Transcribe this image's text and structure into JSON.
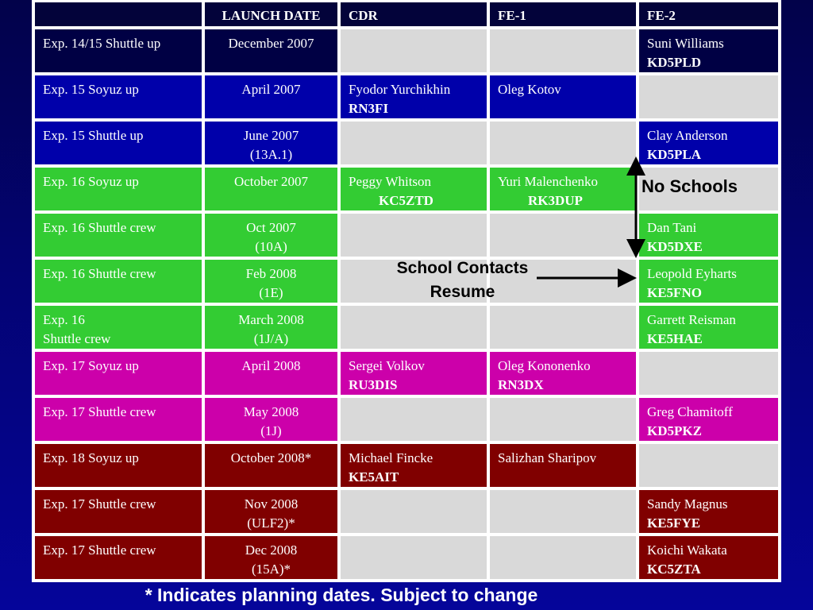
{
  "columns": [
    "",
    "LAUNCH DATE",
    "CDR",
    "FE-1",
    "FE-2"
  ],
  "rows": [
    {
      "color": "navy",
      "mission": "Exp. 14/15 Shuttle up",
      "date": [
        "December 2007"
      ],
      "cdr": null,
      "fe1": null,
      "fe2": {
        "name": "Suni Williams",
        "call": "KD5PLD"
      }
    },
    {
      "color": "blue",
      "mission": "Exp. 15 Soyuz up",
      "date": [
        "April 2007"
      ],
      "cdr": {
        "name": "Fyodor Yurchikhin",
        "call": "RN3FI"
      },
      "fe1": {
        "name": "Oleg Kotov",
        "call": ""
      },
      "fe2": null
    },
    {
      "color": "blue",
      "mission": "Exp. 15 Shuttle up",
      "date": [
        "June 2007",
        "(13A.1)"
      ],
      "cdr": null,
      "fe1": null,
      "fe2": {
        "name": "Clay Anderson",
        "call": "KD5PLA"
      }
    },
    {
      "color": "green",
      "mission": "Exp. 16 Soyuz up",
      "date": [
        "October 2007"
      ],
      "cdr": {
        "name": "Peggy Whitson",
        "call": "KC5ZTD"
      },
      "fe1": {
        "name": "Yuri Malenchenko",
        "call": "RK3DUP"
      },
      "fe2": null
    },
    {
      "color": "green",
      "mission": "Exp. 16 Shuttle crew",
      "date": [
        "Oct 2007",
        "(10A)"
      ],
      "cdr": null,
      "fe1": null,
      "fe2": {
        "name": "Dan Tani",
        "call": "KD5DXE"
      }
    },
    {
      "color": "green",
      "mission": "Exp. 16 Shuttle crew",
      "date": [
        "Feb 2008",
        "(1E)"
      ],
      "cdr": null,
      "fe1": null,
      "fe2": {
        "name": "Leopold Eyharts",
        "call": "KE5FNO"
      }
    },
    {
      "color": "green",
      "mission": "Exp. 16\nShuttle crew",
      "date": [
        "March 2008",
        "(1J/A)"
      ],
      "cdr": null,
      "fe1": null,
      "fe2": {
        "name": "Garrett Reisman",
        "call": "KE5HAE"
      }
    },
    {
      "color": "pink",
      "mission": "Exp. 17 Soyuz up",
      "date": [
        "April 2008"
      ],
      "cdr": {
        "name": "Sergei Volkov",
        "call": "RU3DIS"
      },
      "fe1": {
        "name": "Oleg Kononenko",
        "call": "RN3DX"
      },
      "fe2": null
    },
    {
      "color": "pink",
      "mission": "Exp. 17 Shuttle crew",
      "date": [
        "May 2008",
        "(1J)"
      ],
      "cdr": null,
      "fe1": null,
      "fe2": {
        "name": "Greg Chamitoff",
        "call": "KD5PKZ"
      }
    },
    {
      "color": "maroon",
      "mission": "Exp. 18 Soyuz up",
      "date": [
        "October 2008*"
      ],
      "cdr": {
        "name": "Michael Fincke",
        "call": "KE5AIT"
      },
      "fe1": {
        "name": "Salizhan Sharipov",
        "call": ""
      },
      "fe2": null
    },
    {
      "color": "maroon",
      "mission": "Exp. 17 Shuttle crew",
      "date": [
        "Nov 2008",
        "(ULF2)*"
      ],
      "cdr": null,
      "fe1": null,
      "fe2": {
        "name": "Sandy Magnus",
        "call": "KE5FYE"
      }
    },
    {
      "color": "maroon",
      "mission": "Exp. 17 Shuttle crew",
      "date": [
        "Dec 2008",
        "(15A)*"
      ],
      "cdr": null,
      "fe1": null,
      "fe2": {
        "name": "Koichi Wakata",
        "call": "KC5ZTA"
      }
    }
  ],
  "annotations": {
    "no_schools": "No Schools",
    "school_contacts_line1": "School Contacts",
    "school_contacts_line2": "Resume"
  },
  "footnote": "* Indicates planning dates. Subject to change",
  "colors": {
    "navy": "#000044",
    "blue": "#0000aa",
    "green": "#33cc33",
    "pink": "#cc00aa",
    "maroon": "#800000",
    "empty": "#d9d9d9",
    "header": "#03033a"
  }
}
